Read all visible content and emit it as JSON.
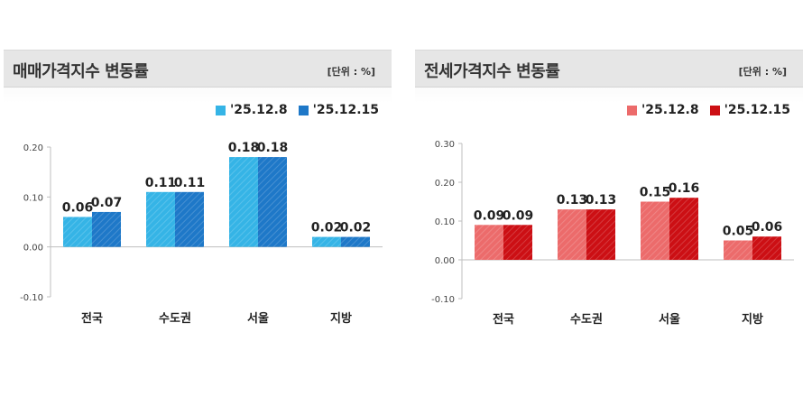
{
  "chart_data": [
    {
      "type": "bar",
      "title": "매매가격지수 변동률",
      "unit": "[단위 : %]",
      "categories": [
        "전국",
        "수도권",
        "서울",
        "지방"
      ],
      "series": [
        {
          "name": "'25.12.8",
          "values": [
            0.06,
            0.11,
            0.18,
            0.02
          ],
          "color": "#35b4e6"
        },
        {
          "name": "'25.12.15",
          "values": [
            0.07,
            0.11,
            0.18,
            0.02
          ],
          "color": "#1e78c8"
        }
      ],
      "value_labels": [
        [
          "0.06",
          "0.11",
          "0.18",
          "0.02"
        ],
        [
          "0.07",
          "0.11",
          "0.18",
          "0.02"
        ]
      ],
      "yticks": [
        "0.20",
        "0.10",
        "0.00",
        "-0.10"
      ],
      "ylim": [
        -0.1,
        0.2
      ],
      "legend": "top-right"
    },
    {
      "type": "bar",
      "title": "전세가격지수 변동률",
      "unit": "[단위 : %]",
      "categories": [
        "전국",
        "수도권",
        "서울",
        "지방"
      ],
      "series": [
        {
          "name": "'25.12.8",
          "values": [
            0.09,
            0.13,
            0.15,
            0.05
          ],
          "color": "#ec6b6b"
        },
        {
          "name": "'25.12.15",
          "values": [
            0.09,
            0.13,
            0.16,
            0.06
          ],
          "color": "#cc0f14"
        }
      ],
      "value_labels": [
        [
          "0.09",
          "0.13",
          "0.15",
          "0.05"
        ],
        [
          "0.09",
          "0.13",
          "0.16",
          "0.06"
        ]
      ],
      "yticks": [
        "0.30",
        "0.20",
        "0.10",
        "0.00",
        "-0.10"
      ],
      "ylim": [
        -0.1,
        0.3
      ],
      "legend": "top-right"
    }
  ]
}
